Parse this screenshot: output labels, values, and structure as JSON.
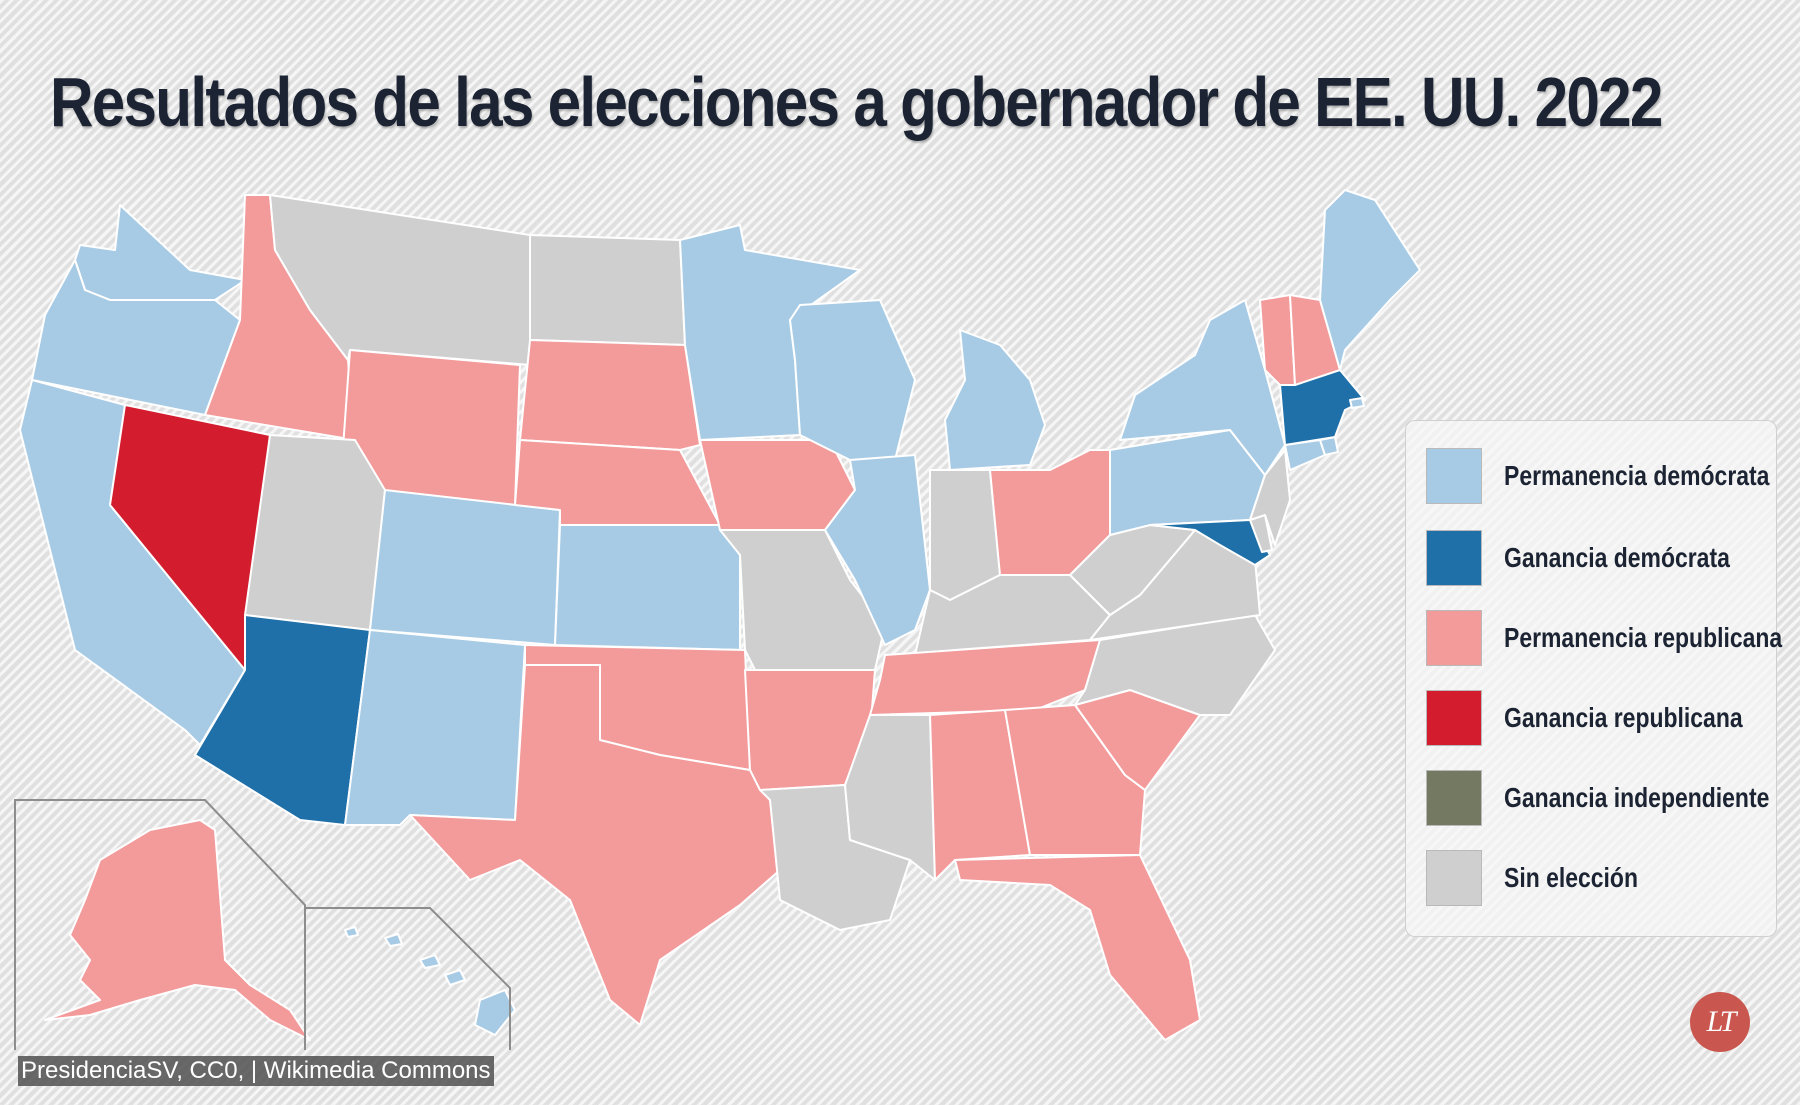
{
  "title": "Resultados de las elecciones a gobernador de EE. UU. 2022",
  "colors": {
    "dem_hold": "#a8cbe5",
    "dem_gain": "#1f6fa8",
    "rep_hold": "#f39a9a",
    "rep_gain": "#d31c2e",
    "ind_gain": "#747a62",
    "no_election": "#cfcfcf"
  },
  "legend": [
    {
      "key": "dem_hold",
      "label": "Permanencia demócrata"
    },
    {
      "key": "dem_gain",
      "label": "Ganancia demócrata"
    },
    {
      "key": "rep_hold",
      "label": "Permanencia republicana"
    },
    {
      "key": "rep_gain",
      "label": "Ganancia republicana"
    },
    {
      "key": "ind_gain",
      "label": "Ganancia independiente"
    },
    {
      "key": "no_election",
      "label": "Sin elección"
    }
  ],
  "states": {
    "dem_hold": [
      "WA",
      "OR",
      "CA",
      "CO",
      "NM",
      "KS",
      "MN",
      "WI",
      "MI",
      "IL",
      "NY",
      "PA",
      "ME",
      "CT",
      "RI",
      "HI"
    ],
    "dem_gain": [
      "AZ",
      "MD",
      "MA"
    ],
    "rep_hold": [
      "ID",
      "WY",
      "SD",
      "NE",
      "IA",
      "OK",
      "TX",
      "AR",
      "TN",
      "AL",
      "GA",
      "SC",
      "FL",
      "OH",
      "VT",
      "NH",
      "AK"
    ],
    "rep_gain": [
      "NV"
    ],
    "ind_gain": [],
    "no_election": [
      "MT",
      "ND",
      "UT",
      "MO",
      "LA",
      "MS",
      "KY",
      "IN",
      "WV",
      "VA",
      "NC",
      "NJ",
      "DE"
    ]
  },
  "credit": "PresidenciaSV, CC0, | Wikimedia Commons",
  "logo_text": "LT"
}
